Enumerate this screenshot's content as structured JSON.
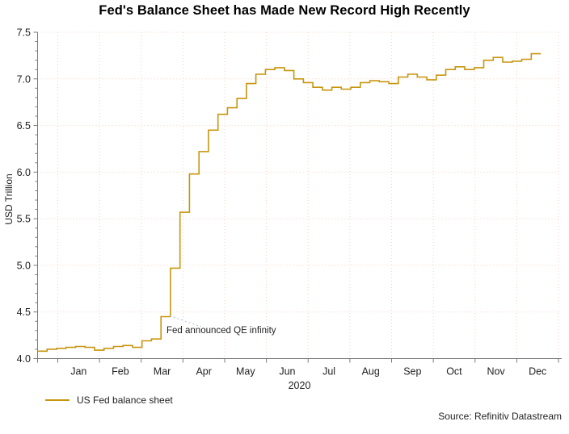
{
  "chart_data": {
    "type": "line",
    "step": true,
    "title": "Fed's Balance Sheet has Made New Record High Recently",
    "ylabel": "USD Trillion",
    "xlabel": "2020",
    "x_axis": {
      "tick_labels": [
        "Jan",
        "Feb",
        "Mar",
        "Apr",
        "May",
        "Jun",
        "Jul",
        "Aug",
        "Sep",
        "Oct",
        "Nov",
        "Dec"
      ],
      "year_label": "2020"
    },
    "y_axis": {
      "ticks": [
        4.0,
        4.5,
        5.0,
        5.5,
        6.0,
        6.5,
        7.0,
        7.5
      ],
      "minor_tick_interval": 0.1,
      "range": [
        4.0,
        7.5
      ]
    },
    "grid": {
      "style": "dotted",
      "on": true
    },
    "legend_position": "bottom-left",
    "series": [
      {
        "name": "US Fed balance sheet",
        "frequency": "weekly",
        "dates": [
          "2019-12-18",
          "2019-12-25",
          "2020-01-01",
          "2020-01-08",
          "2020-01-15",
          "2020-01-22",
          "2020-01-29",
          "2020-02-05",
          "2020-02-12",
          "2020-02-19",
          "2020-02-26",
          "2020-03-04",
          "2020-03-11",
          "2020-03-18",
          "2020-03-25",
          "2020-04-01",
          "2020-04-08",
          "2020-04-15",
          "2020-04-22",
          "2020-04-29",
          "2020-05-06",
          "2020-05-13",
          "2020-05-20",
          "2020-05-27",
          "2020-06-03",
          "2020-06-10",
          "2020-06-17",
          "2020-06-24",
          "2020-07-01",
          "2020-07-08",
          "2020-07-15",
          "2020-07-22",
          "2020-07-29",
          "2020-08-05",
          "2020-08-12",
          "2020-08-19",
          "2020-08-26",
          "2020-09-02",
          "2020-09-09",
          "2020-09-16",
          "2020-09-23",
          "2020-09-30",
          "2020-10-07",
          "2020-10-14",
          "2020-10-21",
          "2020-10-28",
          "2020-11-04",
          "2020-11-11",
          "2020-11-18",
          "2020-11-25",
          "2020-12-02",
          "2020-12-09",
          "2020-12-16"
        ],
        "values": [
          4.08,
          4.1,
          4.11,
          4.12,
          4.13,
          4.12,
          4.09,
          4.11,
          4.13,
          4.14,
          4.12,
          4.19,
          4.21,
          4.45,
          4.97,
          5.57,
          5.98,
          6.22,
          6.45,
          6.62,
          6.69,
          6.79,
          6.95,
          7.05,
          7.1,
          7.12,
          7.09,
          7.0,
          6.96,
          6.91,
          6.88,
          6.91,
          6.89,
          6.91,
          6.96,
          6.98,
          6.97,
          6.95,
          7.02,
          7.05,
          7.02,
          6.99,
          7.04,
          7.1,
          7.13,
          7.1,
          7.12,
          7.2,
          7.23,
          7.18,
          7.19,
          7.21,
          7.27
        ]
      }
    ],
    "annotation": {
      "text": "Fed announced QE infinity",
      "points_to_value": 4.45,
      "points_to_date": "2020-03-23"
    },
    "source": "Source: Refinitiv Datastream"
  },
  "style": {
    "line_color": "#C7960F",
    "grid_color": "#F3D2C0",
    "axis_color": "#7a7a7a",
    "tick_label_color": "#222222",
    "callout_color": "#A5C2DC",
    "background": "#ffffff"
  }
}
